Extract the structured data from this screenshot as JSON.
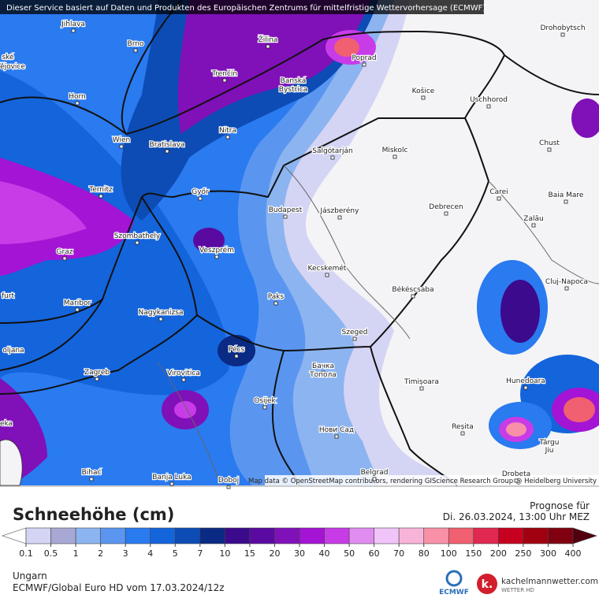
{
  "header": {
    "notice": "Dieser Service basiert auf Daten und Produkten des Europäischen Zentrums für mittelfristige Wettervorhersage (ECMWF)"
  },
  "map": {
    "cities": [
      "Jihlava",
      "Brno",
      "Žilina",
      "Poprad",
      "Drohobytsch",
      "ské",
      "ějovice",
      "Trenčín",
      "Banská",
      "Bystrica",
      "Košice",
      "Uschhorod",
      "Horn",
      "Nitra",
      "Wien",
      "Bratislava",
      "Chust",
      "Salgótarján",
      "Miskolc",
      "Ternitz",
      "Győr",
      "Carei",
      "Baia Mare",
      "Budapest",
      "Jászberény",
      "Debrecen",
      "Szombathely",
      "Zalău",
      "Graz",
      "Veszprém",
      "Kecskemét",
      "Cluj-Napoca",
      "Békéscsaba",
      "Paks",
      "Maribor",
      "furt",
      "Nagykanizsa",
      "Szeged",
      "oljana",
      "Pécs",
      "Zagreb",
      "Virovitica",
      "Бачка",
      "Топола",
      "Timișoara",
      "Hunedoara",
      "Osijek",
      "Нови Сад",
      "Reșita",
      "eka",
      "Târgu",
      "Jiu",
      "Bihać",
      "Banja Luka",
      "Doboj",
      "Belgrad",
      "Drobeta"
    ],
    "attribution": "Map data © OpenStreetMap contributors, rendering GIScience Research Group @ Heidelberg University"
  },
  "legend": {
    "title": "Schneehöhe (cm)",
    "ticks": [
      0.1,
      0.5,
      1,
      2,
      3,
      4,
      5,
      7,
      10,
      15,
      20,
      30,
      40,
      50,
      60,
      70,
      80,
      100,
      150,
      200,
      250,
      300,
      400
    ],
    "colors": [
      "#ffffff",
      "#d4d4f4",
      "#a8a8d4",
      "#8cb4f0",
      "#5a96f0",
      "#2a7af0",
      "#1464dc",
      "#0c4cb4",
      "#0a2a84",
      "#3c0a8c",
      "#5a0aa0",
      "#8010b8",
      "#a414d4",
      "#c83ce8",
      "#e08cf0",
      "#f0c4f8",
      "#f8b4d8",
      "#f890a8",
      "#f06070",
      "#e02850",
      "#c80020",
      "#a00010",
      "#800010",
      "#500010"
    ]
  },
  "forecast": {
    "label": "Prognose für",
    "time": "Di. 26.03.2024, 13:00 Uhr MEZ"
  },
  "footer": {
    "region": "Ungarn",
    "model": "ECMWF/Global Euro HD vom  17.03.2024/12z",
    "logos": [
      "ECMWF",
      "kachelmannwetter.com",
      "WETTER HD"
    ]
  }
}
